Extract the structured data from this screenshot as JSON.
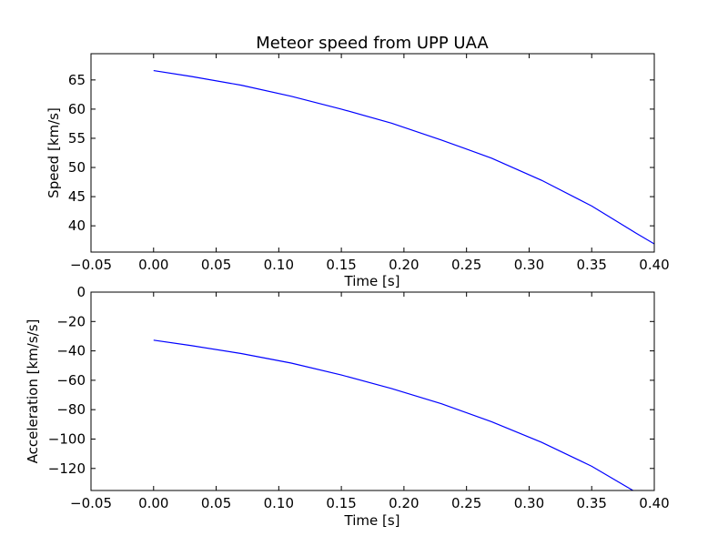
{
  "chart_data": [
    {
      "type": "line",
      "title": "Meteor speed from  UPP UAA",
      "xlabel": "Time [s]",
      "ylabel": "Speed [km/s]",
      "xlim": [
        -0.05,
        0.4
      ],
      "ylim": [
        35.5,
        69.5
      ],
      "xticks": [
        "−0.05",
        "0.00",
        "0.05",
        "0.10",
        "0.15",
        "0.20",
        "0.25",
        "0.30",
        "0.35",
        "0.40"
      ],
      "xtick_values": [
        -0.05,
        0.0,
        0.05,
        0.1,
        0.15,
        0.2,
        0.25,
        0.3,
        0.35,
        0.4
      ],
      "yticks": [
        "40",
        "45",
        "50",
        "55",
        "60",
        "65"
      ],
      "ytick_values": [
        40,
        45,
        50,
        55,
        60,
        65
      ],
      "grid": false,
      "series": [
        {
          "color": "#0000ff",
          "x": [
            0.0,
            0.03,
            0.07,
            0.11,
            0.15,
            0.19,
            0.23,
            0.27,
            0.31,
            0.35,
            0.385,
            0.4
          ],
          "y": [
            66.6,
            65.6,
            64.1,
            62.2,
            60.0,
            57.6,
            54.7,
            51.6,
            47.8,
            43.4,
            38.8,
            36.9
          ]
        }
      ]
    },
    {
      "type": "line",
      "title": "",
      "xlabel": "Time [s]",
      "ylabel": "Acceleration [km/s/s]",
      "xlim": [
        -0.05,
        0.4
      ],
      "ylim": [
        -135,
        0
      ],
      "xticks": [
        "−0.05",
        "0.00",
        "0.05",
        "0.10",
        "0.15",
        "0.20",
        "0.25",
        "0.30",
        "0.35",
        "0.40"
      ],
      "xtick_values": [
        -0.05,
        0.0,
        0.05,
        0.1,
        0.15,
        0.2,
        0.25,
        0.3,
        0.35,
        0.4
      ],
      "yticks": [
        "0",
        "−20",
        "−40",
        "−60",
        "−80",
        "−100",
        "−120"
      ],
      "ytick_values": [
        0,
        -20,
        -40,
        -60,
        -80,
        -100,
        -120
      ],
      "grid": false,
      "series": [
        {
          "color": "#0000ff",
          "x": [
            0.0,
            0.03,
            0.07,
            0.11,
            0.15,
            0.19,
            0.23,
            0.27,
            0.31,
            0.35,
            0.383
          ],
          "y": [
            -32.7,
            -36.4,
            -41.8,
            -48.3,
            -56.4,
            -65.6,
            -76.0,
            -88.2,
            -102.2,
            -118.5,
            -135.0
          ]
        }
      ]
    }
  ]
}
